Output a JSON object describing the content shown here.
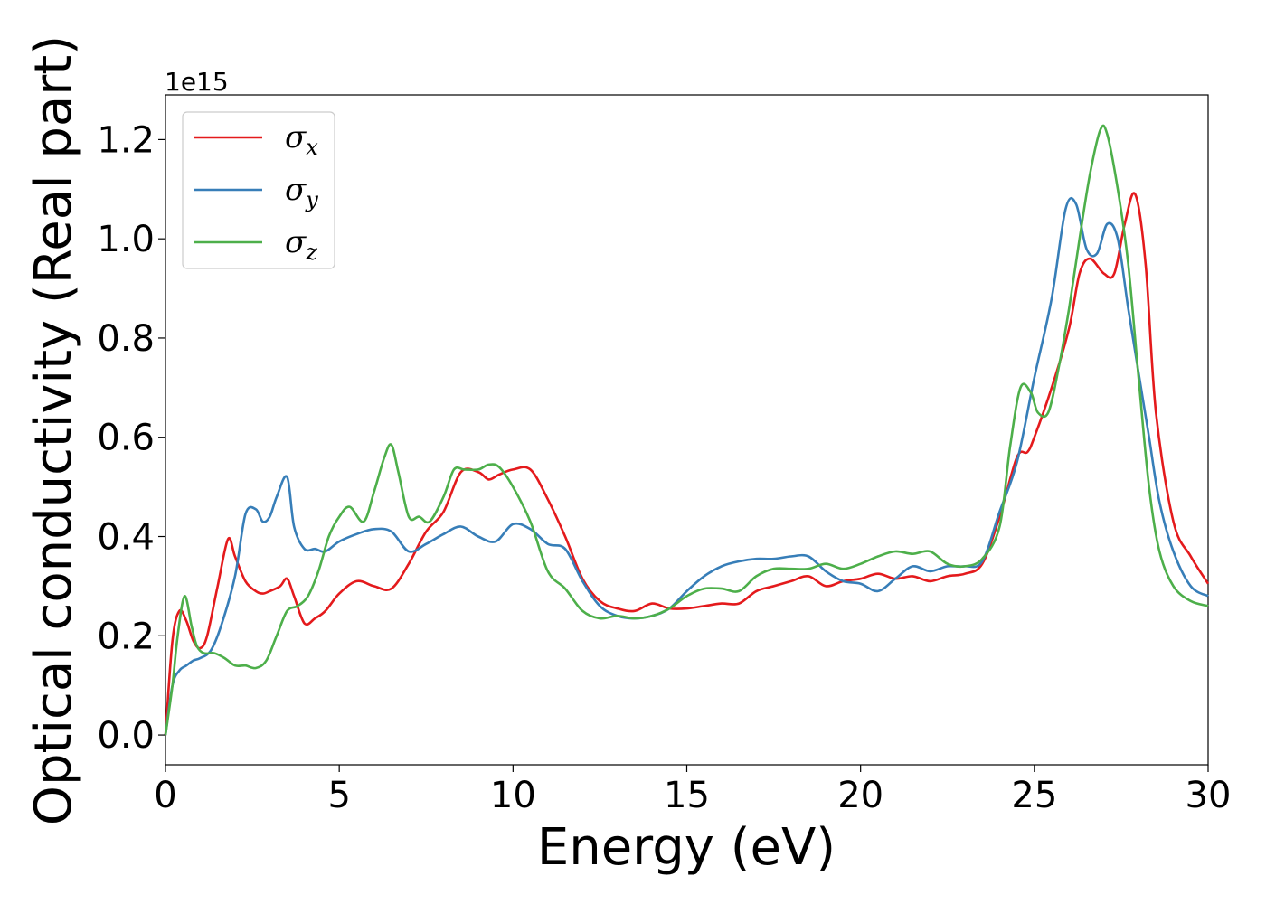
{
  "chart_data": {
    "type": "line",
    "title": "",
    "xlabel": "Energy (eV)",
    "ylabel": "Optical conductivity (Real part)",
    "offset_text": "1e15",
    "xlim": [
      0,
      30
    ],
    "ylim": [
      -0.06,
      1.29
    ],
    "y_scale_factor": 1000000000000000.0,
    "xticks": [
      "0",
      "5",
      "10",
      "15",
      "20",
      "25",
      "30"
    ],
    "xtick_values": [
      0,
      5,
      10,
      15,
      20,
      25,
      30
    ],
    "yticks": [
      "0.0",
      "0.2",
      "0.4",
      "0.6",
      "0.8",
      "1.0",
      "1.2"
    ],
    "ytick_values": [
      0.0,
      0.2,
      0.4,
      0.6,
      0.8,
      1.0,
      1.2
    ],
    "grid": false,
    "legend_position": "top-left",
    "series": [
      {
        "name": "σ",
        "sub": "x",
        "color": "#e41a1c",
        "x": [
          0,
          0.2,
          0.4,
          0.6,
          0.8,
          1.0,
          1.2,
          1.5,
          1.8,
          2.0,
          2.3,
          2.6,
          2.8,
          3.0,
          3.3,
          3.5,
          3.7,
          4.0,
          4.3,
          4.6,
          5.0,
          5.5,
          6.0,
          6.5,
          7.0,
          7.5,
          8.0,
          8.5,
          9.0,
          9.3,
          9.6,
          10.0,
          10.5,
          11.0,
          11.5,
          12.0,
          12.5,
          13.0,
          13.5,
          14.0,
          14.5,
          15.0,
          15.5,
          16.0,
          16.5,
          17.0,
          17.5,
          18.0,
          18.5,
          19.0,
          19.5,
          20.0,
          20.5,
          21.0,
          21.5,
          22.0,
          22.5,
          23.0,
          23.5,
          24.0,
          24.5,
          24.8,
          25.0,
          25.5,
          26.0,
          26.3,
          26.6,
          27.0,
          27.3,
          27.6,
          27.9,
          28.2,
          28.5,
          29.0,
          29.5,
          30.0
        ],
        "y": [
          0.0,
          0.19,
          0.25,
          0.23,
          0.19,
          0.175,
          0.2,
          0.3,
          0.395,
          0.36,
          0.31,
          0.29,
          0.285,
          0.29,
          0.3,
          0.315,
          0.28,
          0.225,
          0.235,
          0.25,
          0.285,
          0.31,
          0.3,
          0.295,
          0.345,
          0.41,
          0.45,
          0.53,
          0.53,
          0.515,
          0.525,
          0.535,
          0.535,
          0.475,
          0.4,
          0.315,
          0.27,
          0.255,
          0.25,
          0.265,
          0.255,
          0.255,
          0.26,
          0.265,
          0.265,
          0.29,
          0.3,
          0.31,
          0.32,
          0.3,
          0.31,
          0.315,
          0.325,
          0.315,
          0.32,
          0.31,
          0.32,
          0.325,
          0.345,
          0.44,
          0.56,
          0.57,
          0.6,
          0.7,
          0.82,
          0.93,
          0.96,
          0.93,
          0.93,
          1.03,
          1.09,
          0.95,
          0.65,
          0.43,
          0.36,
          0.305
        ]
      },
      {
        "name": "σ",
        "sub": "y",
        "color": "#377eb8",
        "x": [
          0,
          0.2,
          0.4,
          0.6,
          0.8,
          1.0,
          1.3,
          1.6,
          2.0,
          2.3,
          2.6,
          2.8,
          3.0,
          3.2,
          3.5,
          3.7,
          4.0,
          4.3,
          4.6,
          5.0,
          5.5,
          6.0,
          6.5,
          7.0,
          7.5,
          8.0,
          8.5,
          9.0,
          9.5,
          10.0,
          10.5,
          11.0,
          11.5,
          12.0,
          12.5,
          13.0,
          13.5,
          14.0,
          14.5,
          15.0,
          15.5,
          16.0,
          16.5,
          17.0,
          17.5,
          18.0,
          18.5,
          19.0,
          19.5,
          20.0,
          20.5,
          21.0,
          21.5,
          22.0,
          22.5,
          23.0,
          23.5,
          24.0,
          24.5,
          25.0,
          25.5,
          25.9,
          26.2,
          26.5,
          26.8,
          27.1,
          27.4,
          27.7,
          28.0,
          28.3,
          28.6,
          29.0,
          29.5,
          30.0
        ],
        "y": [
          0.0,
          0.1,
          0.13,
          0.14,
          0.15,
          0.155,
          0.17,
          0.22,
          0.32,
          0.445,
          0.455,
          0.43,
          0.44,
          0.48,
          0.52,
          0.42,
          0.375,
          0.375,
          0.37,
          0.39,
          0.405,
          0.415,
          0.41,
          0.37,
          0.385,
          0.405,
          0.42,
          0.4,
          0.39,
          0.425,
          0.415,
          0.385,
          0.375,
          0.31,
          0.26,
          0.24,
          0.235,
          0.24,
          0.255,
          0.29,
          0.32,
          0.34,
          0.35,
          0.355,
          0.355,
          0.36,
          0.36,
          0.33,
          0.31,
          0.305,
          0.29,
          0.315,
          0.34,
          0.33,
          0.34,
          0.34,
          0.35,
          0.45,
          0.55,
          0.72,
          0.88,
          1.06,
          1.07,
          0.98,
          0.97,
          1.03,
          1.0,
          0.86,
          0.73,
          0.6,
          0.47,
          0.37,
          0.3,
          0.28
        ]
      },
      {
        "name": "σ",
        "sub": "z",
        "color": "#4daf4a",
        "x": [
          0,
          0.2,
          0.35,
          0.55,
          0.75,
          0.9,
          1.1,
          1.4,
          1.7,
          2.0,
          2.3,
          2.6,
          2.9,
          3.2,
          3.5,
          3.8,
          4.1,
          4.4,
          4.7,
          5.0,
          5.3,
          5.7,
          6.0,
          6.3,
          6.5,
          6.7,
          7.0,
          7.3,
          7.6,
          8.0,
          8.3,
          8.6,
          9.0,
          9.3,
          9.6,
          10.0,
          10.5,
          11.0,
          11.5,
          12.0,
          12.5,
          13.0,
          13.5,
          14.0,
          14.5,
          15.0,
          15.5,
          16.0,
          16.5,
          17.0,
          17.5,
          18.0,
          18.5,
          19.0,
          19.5,
          20.0,
          20.5,
          21.0,
          21.5,
          22.0,
          22.5,
          23.0,
          23.5,
          24.0,
          24.3,
          24.6,
          24.9,
          25.1,
          25.4,
          25.7,
          26.0,
          26.3,
          26.6,
          26.9,
          27.1,
          27.4,
          27.7,
          28.0,
          28.3,
          28.6,
          29.0,
          29.5,
          30.0
        ],
        "y": [
          0.0,
          0.1,
          0.2,
          0.28,
          0.22,
          0.18,
          0.165,
          0.165,
          0.155,
          0.14,
          0.14,
          0.135,
          0.15,
          0.2,
          0.25,
          0.26,
          0.28,
          0.33,
          0.4,
          0.44,
          0.46,
          0.43,
          0.49,
          0.56,
          0.585,
          0.53,
          0.44,
          0.44,
          0.43,
          0.48,
          0.535,
          0.535,
          0.535,
          0.545,
          0.54,
          0.5,
          0.43,
          0.33,
          0.295,
          0.25,
          0.235,
          0.24,
          0.235,
          0.24,
          0.255,
          0.28,
          0.295,
          0.295,
          0.29,
          0.32,
          0.335,
          0.335,
          0.335,
          0.345,
          0.335,
          0.345,
          0.36,
          0.37,
          0.365,
          0.37,
          0.345,
          0.34,
          0.355,
          0.42,
          0.58,
          0.7,
          0.69,
          0.65,
          0.65,
          0.74,
          0.86,
          1.0,
          1.13,
          1.22,
          1.21,
          1.1,
          0.95,
          0.72,
          0.5,
          0.37,
          0.3,
          0.27,
          0.26
        ]
      }
    ]
  }
}
